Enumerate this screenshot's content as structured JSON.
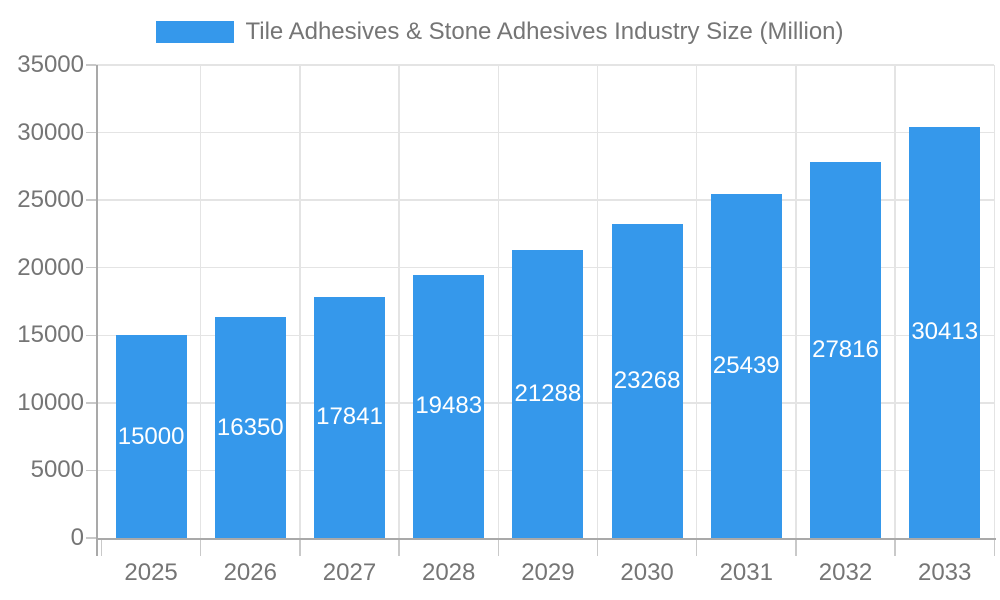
{
  "legend": {
    "label": "Tile Adhesives & Stone Adhesives Industry Size (Million)"
  },
  "colors": {
    "bar": "#3598EB",
    "bar_value_label": "#ffffff",
    "axis_text": "#757575",
    "gridline": "#e4e4e4",
    "axis_border": "#a9a9a9",
    "tick_mark": "#c9c9c9"
  },
  "chart_data": {
    "type": "bar",
    "title": "Tile Adhesives & Stone Adhesives Industry Size (Million)",
    "categories": [
      "2025",
      "2026",
      "2027",
      "2028",
      "2029",
      "2030",
      "2031",
      "2032",
      "2033"
    ],
    "values": [
      15000,
      16350,
      17841,
      19483,
      21288,
      23268,
      25439,
      27816,
      30413
    ],
    "xlabel": "",
    "ylabel": "",
    "ylim": [
      0,
      35000
    ],
    "ytick_step": 5000,
    "ytick_labels": [
      "0",
      "5000",
      "10000",
      "15000",
      "20000",
      "25000",
      "30000",
      "35000"
    ],
    "grid": true,
    "legend_position": "top",
    "value_labels": "inside-center-white"
  }
}
